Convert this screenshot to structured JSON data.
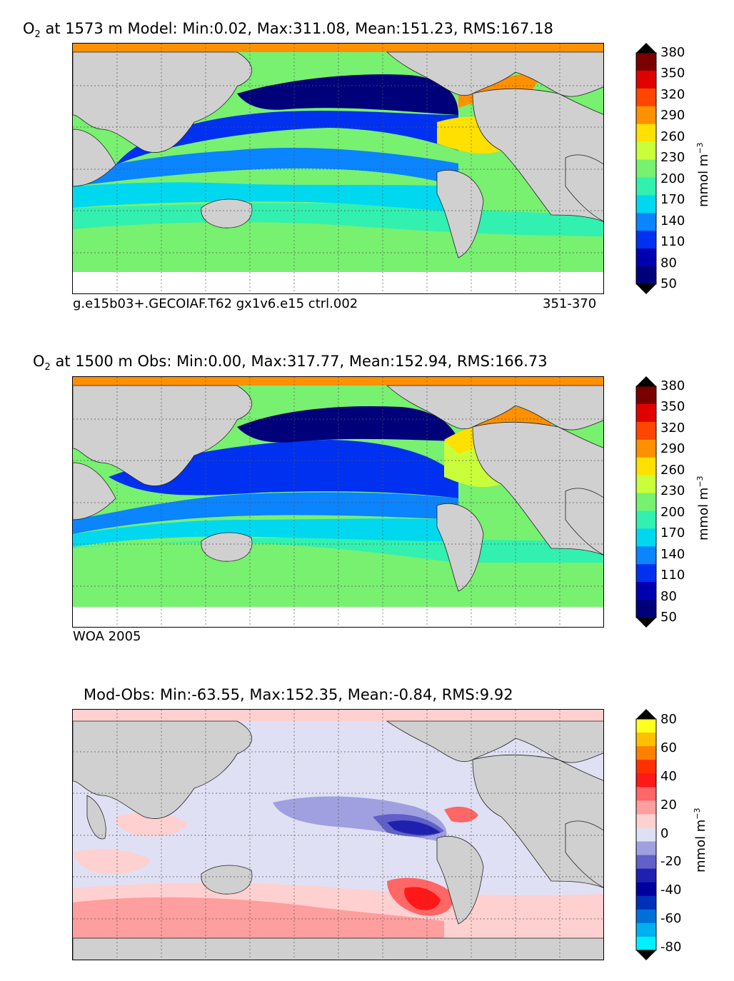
{
  "panels": [
    {
      "title_pre": "O",
      "title_sub": "2",
      "title_post": " at 1573 m Model: Min:0.02, Max:311.08, Mean:151.23, RMS:167.18",
      "caption_left": "g.e15b03+.GECOIAF.T62 gx1v6.e15 ctrl.002",
      "caption_right": "351-370"
    },
    {
      "title_pre": "O",
      "title_sub": "2",
      "title_post": " at 1500 m Obs: Min:0.00, Max:317.77, Mean:152.94, RMS:166.73",
      "caption_left": "WOA 2005",
      "caption_right": ""
    },
    {
      "title_pre": "",
      "title_sub": "",
      "title_post": "Mod-Obs: Min:-63.55, Max:152.35, Mean:-0.84, RMS:9.92",
      "caption_left": "",
      "caption_right": ""
    }
  ],
  "colorbars": {
    "o2": {
      "ticks": [
        "380",
        "350",
        "320",
        "290",
        "260",
        "230",
        "200",
        "170",
        "140",
        "110",
        "80",
        "50"
      ],
      "unit_main": "mmol m",
      "unit_sup": "−3",
      "colors": [
        "#7a0000",
        "#e00000",
        "#ff4500",
        "#ff9000",
        "#ffe000",
        "#c8ff3a",
        "#78f070",
        "#32f0b0",
        "#00d8f0",
        "#0a84ff",
        "#0030f0",
        "#0000b0",
        "#00007a"
      ]
    },
    "diff": {
      "ticks": [
        "80",
        "60",
        "40",
        "20",
        "0",
        "-20",
        "-40",
        "-60",
        "-80"
      ],
      "unit_main": "mmol m",
      "unit_sup": "−3",
      "colors": [
        "#ffff20",
        "#ffc000",
        "#ff8000",
        "#ff3000",
        "#ff1818",
        "#ff6666",
        "#ff9e9e",
        "#ffd0d0",
        "#e0e0f4",
        "#a0a0e0",
        "#6060c8",
        "#2020b0",
        "#0000a0",
        "#0030b8",
        "#0070d8",
        "#00b0f0",
        "#00f0ff"
      ]
    }
  },
  "map_colors": {
    "land": "#d0d0d0",
    "missing": "#ffffff",
    "grid": "#555555"
  }
}
